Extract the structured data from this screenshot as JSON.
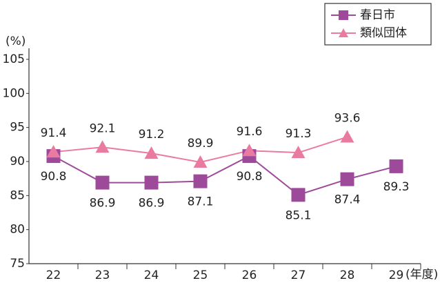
{
  "chart_data": {
    "type": "line",
    "y_label": "(%)",
    "x_label": "(年度)",
    "categories": [
      "22",
      "23",
      "24",
      "25",
      "26",
      "27",
      "28",
      "29"
    ],
    "series": [
      {
        "name": "春日市",
        "color": "#9e4a9b",
        "marker": "square",
        "values": [
          90.8,
          86.9,
          86.9,
          87.1,
          90.8,
          85.1,
          87.4,
          89.3
        ]
      },
      {
        "name": "類似団体",
        "color": "#ea7ba0",
        "marker": "triangle",
        "values": [
          91.4,
          92.1,
          91.2,
          89.9,
          91.6,
          91.3,
          93.6,
          null
        ]
      }
    ],
    "ylim": [
      75,
      105
    ],
    "yticks": [
      75,
      80,
      85,
      90,
      95,
      100,
      105
    ],
    "grid": false,
    "legend": "top-right"
  }
}
